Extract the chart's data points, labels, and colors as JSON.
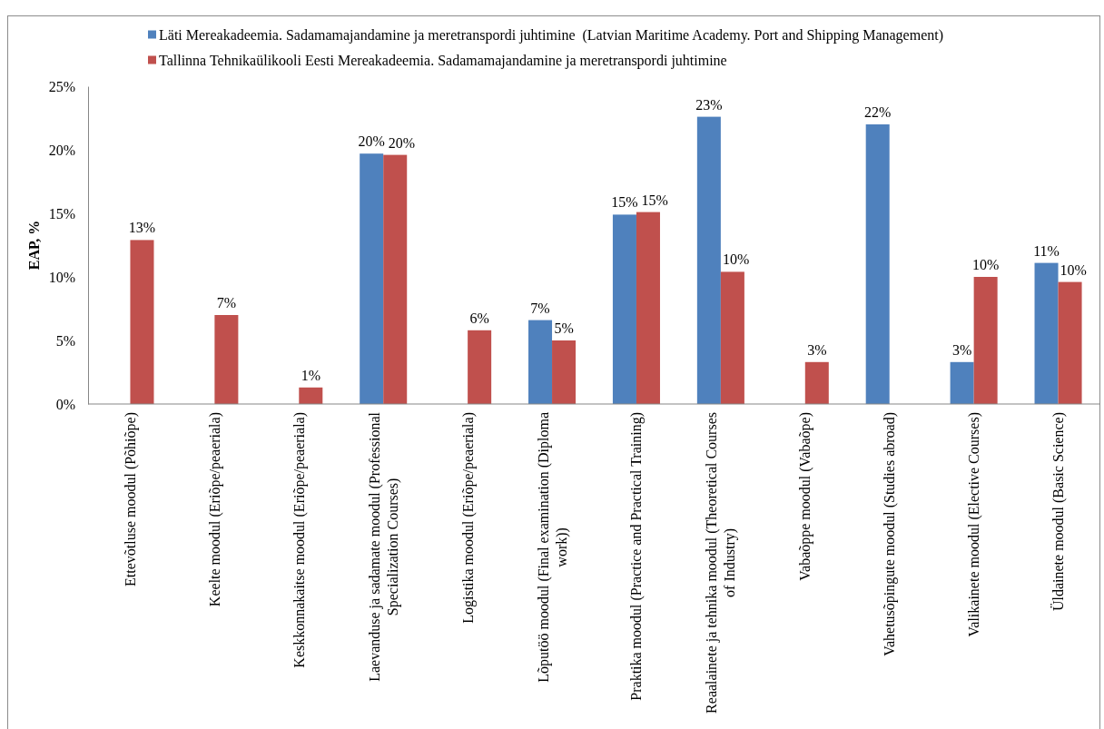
{
  "chart_data": {
    "type": "bar",
    "categories": [
      "Ettevõtluse moodul (Põhiõpe)",
      "Keelte moodul (Eriõpe/peaeriala)",
      "Keskkonnakaitse moodul (Eriõpe/peaeriala)",
      "Laevanduse ja sadamate moodul (Professional Specialization Courses)",
      "Logistika moodul (Eriõpe/peaeriala)",
      "Lõputöö moodul (Final examination (Diploma work))",
      "Praktika moodul (Practice and Practical Training)",
      "Reaalainete ja tehnika moodul (Theoretical Courses of Industry)",
      "Vabaõppe moodul (Vabaõpe)",
      "Vahetusõpingute moodul (Studies abroad)",
      "Valikainete moodul (Elective Courses)",
      "Üldainete moodul (Basic Science)"
    ],
    "series": [
      {
        "name": "Läti Mereakadeemia. Sadamamajandamine ja meretranspordi juhtimine  (Latvian Maritime Academy. Port and Shipping Management)",
        "color": "#4f81bd",
        "values": [
          null,
          null,
          null,
          19.7,
          null,
          6.6,
          14.9,
          22.6,
          null,
          22.0,
          3.3,
          11.1
        ],
        "value_labels": [
          null,
          null,
          null,
          "20%",
          null,
          "7%",
          "15%",
          "23%",
          null,
          "22%",
          "3%",
          "11%"
        ]
      },
      {
        "name": "Tallinna Tehnikaülikooli Eesti Mereakadeemia. Sadamamajandamine ja meretranspordi juhtimine",
        "color": "#c0504d",
        "values": [
          12.9,
          7.0,
          1.3,
          19.6,
          5.8,
          5.0,
          15.1,
          10.4,
          3.3,
          null,
          10.0,
          9.6
        ],
        "value_labels": [
          "13%",
          "7%",
          "1%",
          "20%",
          "6%",
          "5%",
          "15%",
          "10%",
          "3%",
          null,
          "10%",
          "10%"
        ]
      }
    ],
    "ylabel": "EAP, %",
    "ylim": [
      0,
      25
    ],
    "yticks": [
      {
        "value": 0,
        "label": "0%"
      },
      {
        "value": 5,
        "label": "5%"
      },
      {
        "value": 10,
        "label": "10%"
      },
      {
        "value": 15,
        "label": "15%"
      },
      {
        "value": 20,
        "label": "20%"
      },
      {
        "value": 25,
        "label": "25%"
      }
    ],
    "legend": "top",
    "grid": false
  }
}
